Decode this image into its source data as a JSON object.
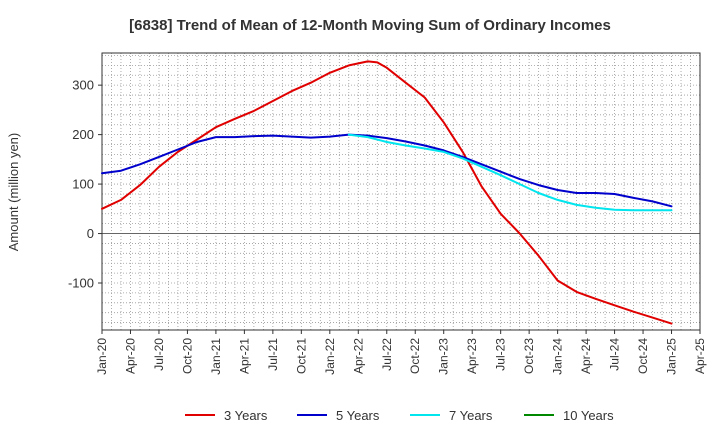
{
  "chart_data": {
    "type": "line",
    "title": "[6838]  Trend of Mean of 12-Month Moving Sum of Ordinary Incomes",
    "xlabel": "",
    "ylabel": "Amount (million yen)",
    "ylim": [
      -195,
      365
    ],
    "y_ticks": [
      300,
      200,
      100,
      0,
      -100
    ],
    "grid": true,
    "legend_position": "bottom",
    "x_tick_labels": [
      "Jan-20",
      "Apr-20",
      "Jul-20",
      "Oct-20",
      "Jan-21",
      "Apr-21",
      "Jul-21",
      "Oct-21",
      "Jan-22",
      "Apr-22",
      "Jul-22",
      "Oct-22",
      "Jan-23",
      "Apr-23",
      "Jul-23",
      "Oct-23",
      "Jan-24",
      "Apr-24",
      "Jul-24",
      "Oct-24",
      "Jan-25",
      "Apr-25"
    ],
    "x_unit": "months since Jan-20",
    "series": [
      {
        "name": "3 Years",
        "color": "#e00000",
        "x": [
          0,
          2,
          4,
          6,
          8,
          10,
          12,
          14,
          16,
          18,
          20,
          22,
          24,
          26,
          28,
          29,
          30,
          32,
          34,
          36,
          38,
          40,
          42,
          44,
          46,
          48,
          50,
          52,
          54,
          56,
          58,
          60
        ],
        "values": [
          50,
          68,
          98,
          135,
          165,
          190,
          215,
          232,
          248,
          268,
          288,
          305,
          325,
          340,
          348,
          346,
          335,
          305,
          275,
          225,
          165,
          95,
          40,
          0,
          -45,
          -95,
          -118,
          -132,
          -145,
          -158,
          -170,
          -182
        ]
      },
      {
        "name": "5 Years",
        "color": "#0000cc",
        "x": [
          0,
          2,
          4,
          6,
          8,
          10,
          12,
          14,
          16,
          18,
          20,
          22,
          24,
          26,
          28,
          30,
          32,
          34,
          36,
          38,
          40,
          42,
          44,
          46,
          48,
          50,
          52,
          54,
          56,
          58,
          60
        ],
        "values": [
          122,
          127,
          140,
          155,
          170,
          185,
          195,
          195,
          197,
          198,
          196,
          194,
          196,
          200,
          198,
          193,
          186,
          178,
          168,
          155,
          140,
          125,
          110,
          98,
          88,
          82,
          82,
          80,
          72,
          65,
          55
        ]
      },
      {
        "name": "7 Years",
        "color": "#00e5ee",
        "x": [
          26,
          28,
          30,
          32,
          34,
          36,
          38,
          40,
          42,
          44,
          46,
          48,
          50,
          52,
          54,
          56,
          58,
          60
        ],
        "values": [
          200,
          195,
          185,
          178,
          172,
          165,
          152,
          135,
          118,
          100,
          82,
          68,
          58,
          52,
          48,
          47,
          47,
          47
        ]
      },
      {
        "name": "10 Years",
        "color": "#008800",
        "x": [],
        "values": []
      }
    ]
  }
}
